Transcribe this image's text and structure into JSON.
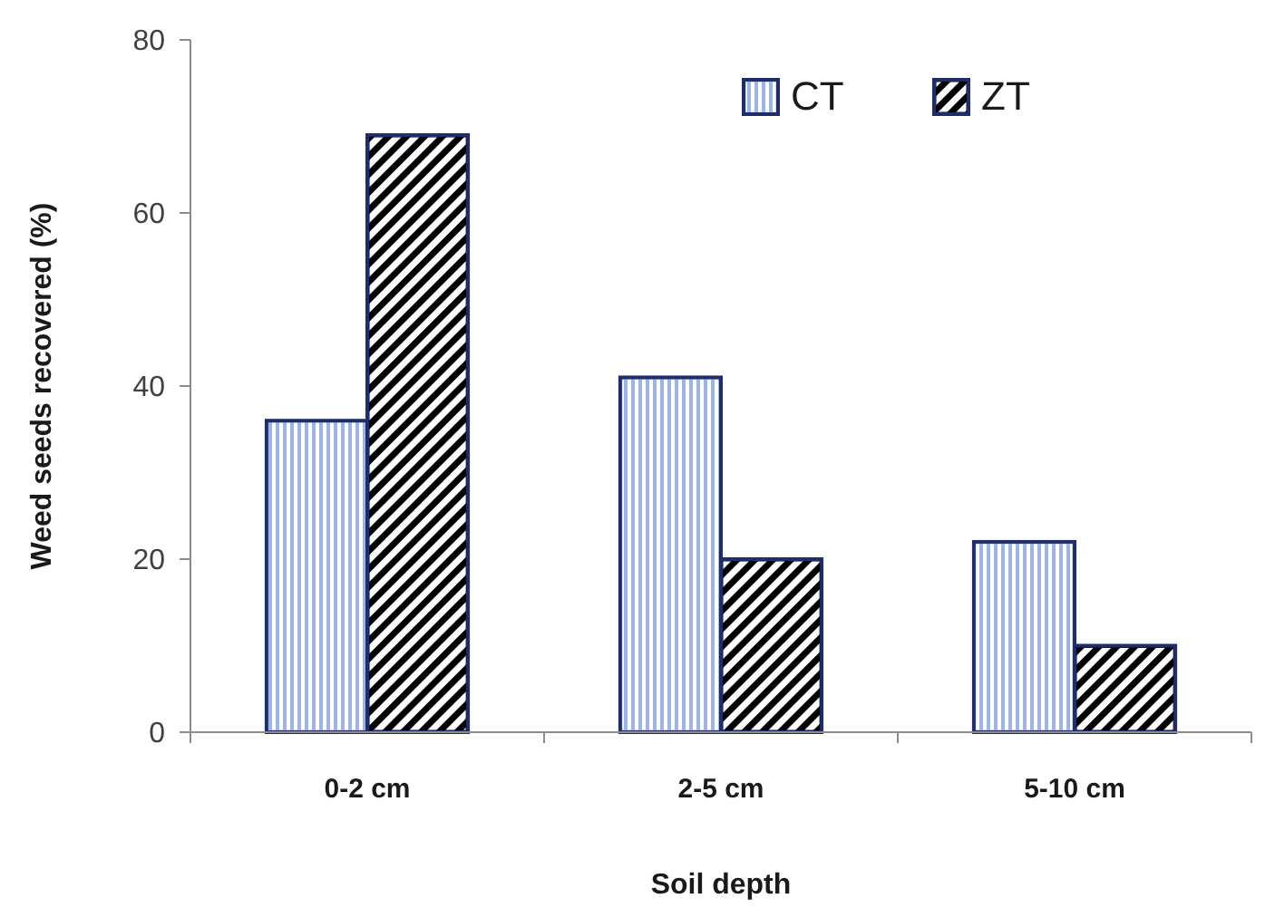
{
  "chart_data": {
    "type": "bar",
    "categories": [
      "0-2 cm",
      "2-5 cm",
      "5-10 cm"
    ],
    "series": [
      {
        "name": "CT",
        "color": "#9db5e3",
        "values": [
          36,
          41,
          22
        ]
      },
      {
        "name": "ZT",
        "color": "#000000",
        "values": [
          69,
          20,
          10
        ]
      }
    ],
    "xlabel": "Soil depth",
    "ylabel": "Weed seeds recovered (%)",
    "ylim": [
      0,
      80
    ],
    "yticks": [
      0,
      20,
      40,
      60,
      80
    ],
    "grid": false,
    "legend": "top right"
  }
}
